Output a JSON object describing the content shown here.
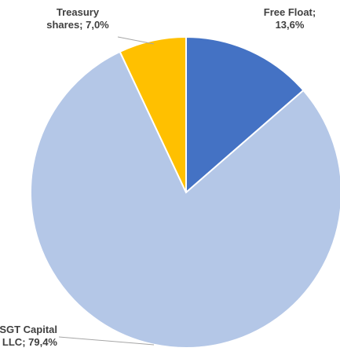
{
  "chart_data": {
    "type": "pie",
    "title": "",
    "slices": [
      {
        "name": "Free Float",
        "value": 13.6,
        "label_lines": [
          "Free Float;",
          "13,6%"
        ],
        "color": "#4472c4"
      },
      {
        "name": "SGT Capital LLC",
        "value": 79.4,
        "label_lines": [
          "SGT Capital",
          "LLC; 79,4%"
        ],
        "color": "#b4c7e7"
      },
      {
        "name": "Treasury shares",
        "value": 7.0,
        "label_lines": [
          "Treasury",
          "shares; 7,0%"
        ],
        "color": "#ffc000"
      }
    ],
    "start_angle_deg": 0,
    "direction": "clockwise",
    "slice_border_color": "#ffffff",
    "legend": "none"
  }
}
